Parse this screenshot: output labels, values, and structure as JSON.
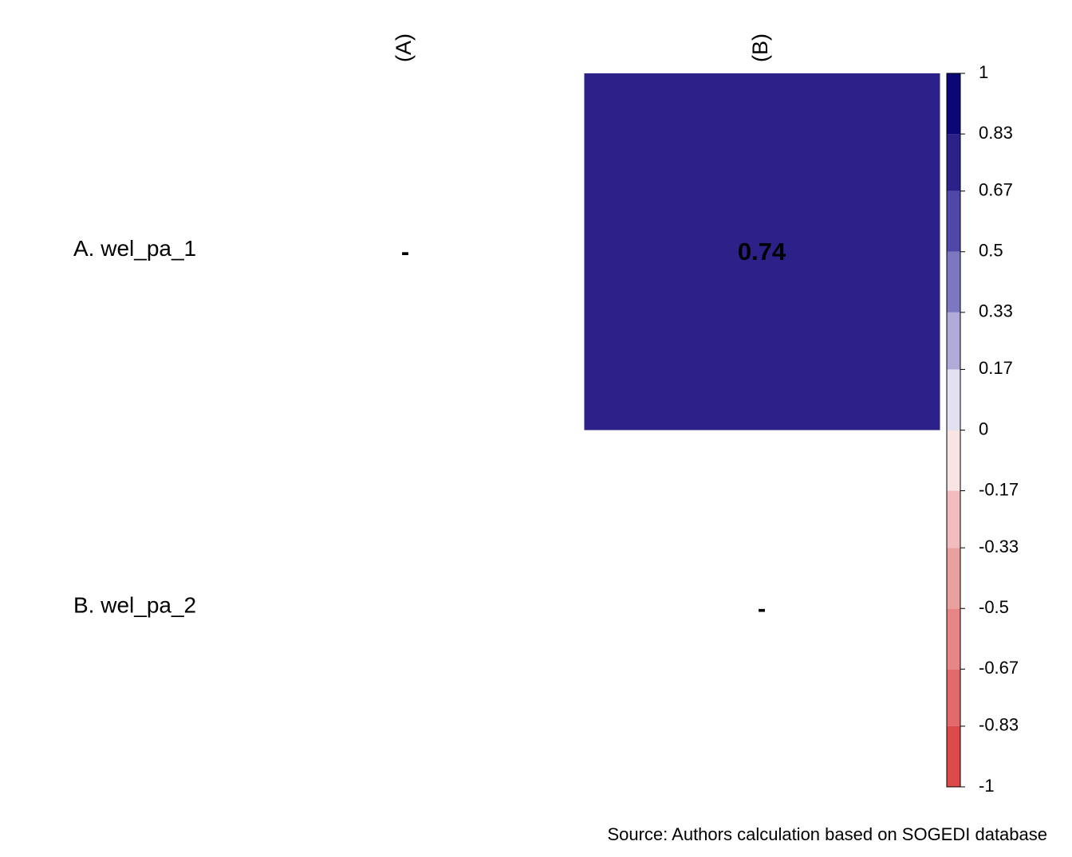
{
  "chart_data": {
    "type": "heatmap",
    "rows": [
      "A. wel_pa_1",
      "B. wel_pa_2"
    ],
    "columns": [
      "(A)",
      "(B)"
    ],
    "values": [
      [
        null,
        0.74
      ],
      [
        null,
        null
      ]
    ],
    "value_labels": [
      [
        "-",
        "0.74"
      ],
      [
        null,
        "-"
      ]
    ],
    "colorbar_ticks": [
      -1,
      -0.83,
      -0.67,
      -0.5,
      -0.33,
      -0.17,
      0,
      0.17,
      0.33,
      0.5,
      0.67,
      0.83,
      1
    ],
    "colorbar_colors": [
      "#dd4a4a",
      "#e26a6a",
      "#e68686",
      "#eba0a0",
      "#f1bcbc",
      "#f9e4e4",
      "#e3e1f1",
      "#b0aad8",
      "#7d76c0",
      "#4f48a8",
      "#2b2188",
      "#0b0776"
    ],
    "source": "Source: Authors calculation based on SOGEDI database"
  }
}
